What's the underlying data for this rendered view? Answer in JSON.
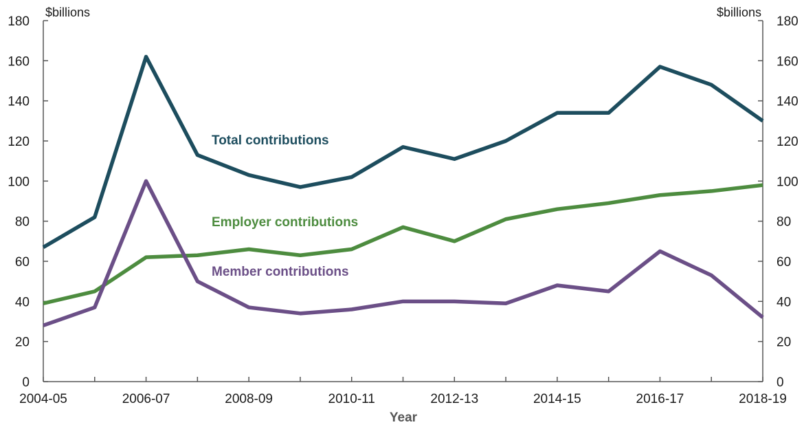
{
  "chart_data": {
    "type": "line",
    "xlabel": "Year",
    "y_unit_left": "$billions",
    "y_unit_right": "$billions",
    "ylim": [
      0,
      180
    ],
    "yticks": [
      0,
      20,
      40,
      60,
      80,
      100,
      120,
      140,
      160,
      180
    ],
    "x": [
      "2004-05",
      "2005-06",
      "2006-07",
      "2007-08",
      "2008-09",
      "2009-10",
      "2010-11",
      "2011-12",
      "2012-13",
      "2013-14",
      "2014-15",
      "2015-16",
      "2016-17",
      "2017-18",
      "2018-19"
    ],
    "xtick_labels": [
      "2004-05",
      "2006-07",
      "2008-09",
      "2010-11",
      "2012-13",
      "2014-15",
      "2016-17",
      "2018-19"
    ],
    "grid": false,
    "series": [
      {
        "name": "Total contributions",
        "color": "#1d4d5e",
        "values": [
          67,
          82,
          162,
          113,
          103,
          97,
          102,
          117,
          111,
          120,
          134,
          134,
          157,
          148,
          130
        ]
      },
      {
        "name": "Employer contributions",
        "color": "#4d8c3f",
        "values": [
          39,
          45,
          62,
          63,
          66,
          63,
          66,
          77,
          70,
          81,
          86,
          89,
          93,
          95,
          98
        ]
      },
      {
        "name": "Member contributions",
        "color": "#6b4f87",
        "values": [
          28,
          37,
          100,
          50,
          37,
          34,
          36,
          40,
          40,
          39,
          48,
          45,
          65,
          53,
          32
        ]
      }
    ]
  }
}
